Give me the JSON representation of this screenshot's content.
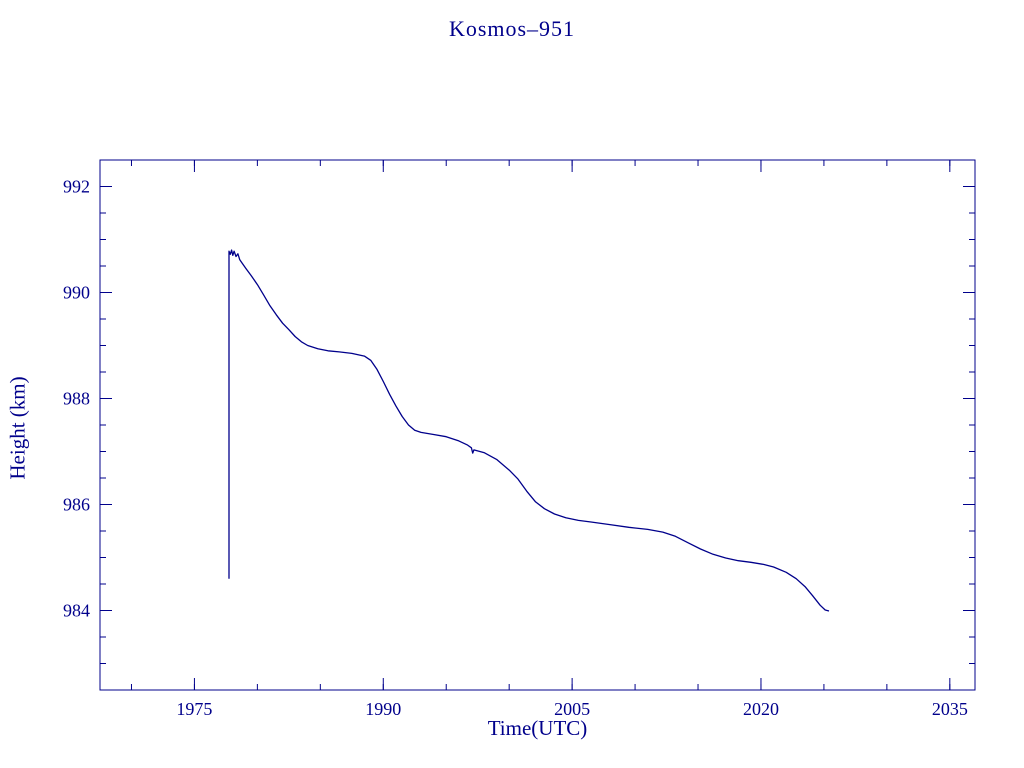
{
  "chart_data": {
    "type": "line",
    "title": "Kosmos–951",
    "xlabel": "Time(UTC)",
    "ylabel": "Height (km)",
    "color": "#00008B",
    "grid": false,
    "legend": "none",
    "xlim": [
      1967.5,
      2037
    ],
    "ylim": [
      982.5,
      992.5
    ],
    "x_ticks": [
      1975,
      1990,
      2005,
      2020,
      2035
    ],
    "x_minor_step": 5,
    "y_ticks": [
      984,
      986,
      988,
      990,
      992
    ],
    "y_minor_step": 0.5,
    "series": [
      {
        "name": "orbital-height-km",
        "points": [
          [
            1977.75,
            984.6
          ],
          [
            1977.75,
            990.78
          ],
          [
            1977.85,
            990.72
          ],
          [
            1977.95,
            990.8
          ],
          [
            1978.05,
            990.7
          ],
          [
            1978.15,
            990.78
          ],
          [
            1978.3,
            990.68
          ],
          [
            1978.45,
            990.73
          ],
          [
            1978.6,
            990.62
          ],
          [
            1978.8,
            990.55
          ],
          [
            1979.1,
            990.45
          ],
          [
            1979.5,
            990.32
          ],
          [
            1980.0,
            990.15
          ],
          [
            1980.5,
            989.95
          ],
          [
            1981.0,
            989.75
          ],
          [
            1981.5,
            989.58
          ],
          [
            1982.0,
            989.42
          ],
          [
            1982.5,
            989.3
          ],
          [
            1983.0,
            989.17
          ],
          [
            1983.5,
            989.07
          ],
          [
            1984.0,
            989.0
          ],
          [
            1984.8,
            988.94
          ],
          [
            1985.6,
            988.9
          ],
          [
            1986.5,
            988.88
          ],
          [
            1987.5,
            988.85
          ],
          [
            1988.5,
            988.8
          ],
          [
            1989.0,
            988.72
          ],
          [
            1989.5,
            988.55
          ],
          [
            1990.0,
            988.32
          ],
          [
            1990.5,
            988.08
          ],
          [
            1991.0,
            987.86
          ],
          [
            1991.5,
            987.66
          ],
          [
            1992.0,
            987.5
          ],
          [
            1992.5,
            987.4
          ],
          [
            1993.0,
            987.36
          ],
          [
            1994.0,
            987.32
          ],
          [
            1995.0,
            987.28
          ],
          [
            1996.0,
            987.2
          ],
          [
            1996.7,
            987.12
          ],
          [
            1997.0,
            987.07
          ],
          [
            1997.1,
            986.97
          ],
          [
            1997.2,
            987.03
          ],
          [
            1998.0,
            986.98
          ],
          [
            1999.0,
            986.85
          ],
          [
            2000.0,
            986.65
          ],
          [
            2000.7,
            986.48
          ],
          [
            2001.4,
            986.25
          ],
          [
            2002.1,
            986.05
          ],
          [
            2002.8,
            985.92
          ],
          [
            2003.6,
            985.82
          ],
          [
            2004.5,
            985.75
          ],
          [
            2005.5,
            985.7
          ],
          [
            2006.5,
            985.67
          ],
          [
            2008.0,
            985.62
          ],
          [
            2009.5,
            985.57
          ],
          [
            2011.0,
            985.53
          ],
          [
            2012.2,
            985.48
          ],
          [
            2013.2,
            985.4
          ],
          [
            2014.2,
            985.28
          ],
          [
            2015.2,
            985.16
          ],
          [
            2016.2,
            985.06
          ],
          [
            2017.2,
            984.99
          ],
          [
            2018.2,
            984.94
          ],
          [
            2019.2,
            984.91
          ],
          [
            2020.2,
            984.87
          ],
          [
            2021.0,
            984.82
          ],
          [
            2022.0,
            984.72
          ],
          [
            2022.8,
            984.6
          ],
          [
            2023.5,
            984.45
          ],
          [
            2024.1,
            984.28
          ],
          [
            2024.7,
            984.1
          ],
          [
            2025.1,
            984.01
          ],
          [
            2025.4,
            983.99
          ]
        ]
      }
    ]
  }
}
